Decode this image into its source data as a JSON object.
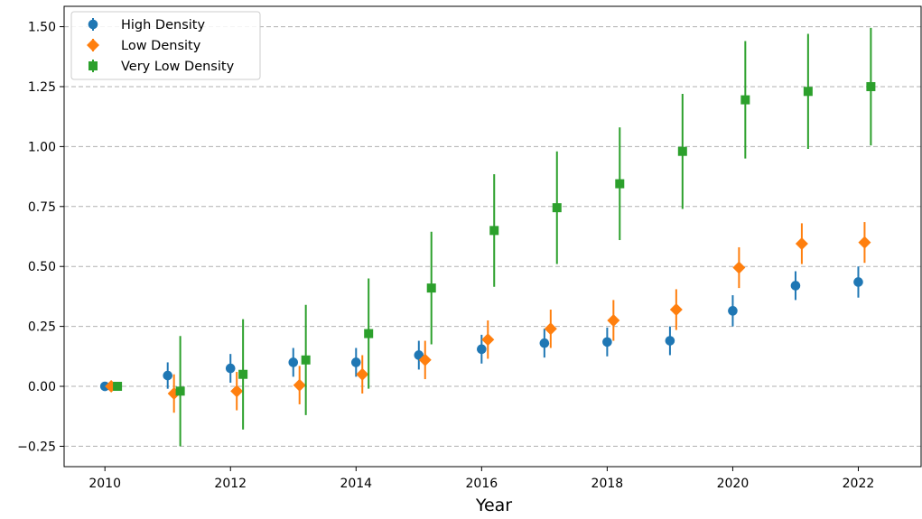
{
  "chart_data": {
    "type": "scatter",
    "title": "",
    "xlabel": "Year",
    "ylabel": "",
    "xlim": [
      2009.35,
      2023.0
    ],
    "ylim": [
      -0.335,
      1.585
    ],
    "xticks": [
      2010,
      2012,
      2014,
      2016,
      2018,
      2020,
      2022
    ],
    "xtick_labels": [
      "2010",
      "2012",
      "2014",
      "2016",
      "2018",
      "2020",
      "2022"
    ],
    "yticks": [
      -0.25,
      0,
      0.25,
      0.5,
      0.75,
      1.0,
      1.25,
      1.5
    ],
    "ytick_labels": [
      "−0.25",
      "0.00",
      "0.25",
      "0.50",
      "0.75",
      "1.00",
      "1.25",
      "1.50"
    ],
    "grid": "horizontal dashed",
    "legend_position": "top-left",
    "x_offset_note": "",
    "series": [
      {
        "name": "High Density",
        "color": "#1f77b4",
        "marker": "circle",
        "x": [
          2010,
          2011,
          2012,
          2013,
          2014,
          2015,
          2016,
          2017,
          2018,
          2019,
          2020,
          2021,
          2022
        ],
        "y": [
          0.0,
          0.045,
          0.075,
          0.1,
          0.1,
          0.13,
          0.155,
          0.18,
          0.185,
          0.19,
          0.315,
          0.42,
          0.435
        ],
        "err": [
          0.0,
          0.055,
          0.06,
          0.06,
          0.06,
          0.06,
          0.06,
          0.06,
          0.06,
          0.06,
          0.065,
          0.06,
          0.065
        ]
      },
      {
        "name": "Low Density",
        "color": "#ff7f0e",
        "marker": "diamond",
        "x": [
          2010,
          2011,
          2012,
          2013,
          2014,
          2015,
          2016,
          2017,
          2018,
          2019,
          2020,
          2021,
          2022
        ],
        "y": [
          0.0,
          -0.03,
          -0.02,
          0.005,
          0.05,
          0.11,
          0.195,
          0.24,
          0.275,
          0.32,
          0.495,
          0.595,
          0.6
        ],
        "err": [
          0.015,
          0.08,
          0.08,
          0.08,
          0.08,
          0.08,
          0.08,
          0.08,
          0.085,
          0.085,
          0.085,
          0.085,
          0.085
        ]
      },
      {
        "name": "Very Low Density",
        "color": "#2ca02c",
        "marker": "square",
        "x": [
          2010,
          2011,
          2012,
          2013,
          2014,
          2015,
          2016,
          2017,
          2018,
          2019,
          2020,
          2021,
          2022
        ],
        "y": [
          0.0,
          -0.02,
          0.05,
          0.11,
          0.22,
          0.41,
          0.65,
          0.745,
          0.845,
          0.98,
          1.195,
          1.23,
          1.25
        ],
        "err": [
          0.0,
          0.23,
          0.23,
          0.23,
          0.23,
          0.235,
          0.235,
          0.235,
          0.235,
          0.24,
          0.245,
          0.24,
          0.245
        ]
      }
    ]
  }
}
